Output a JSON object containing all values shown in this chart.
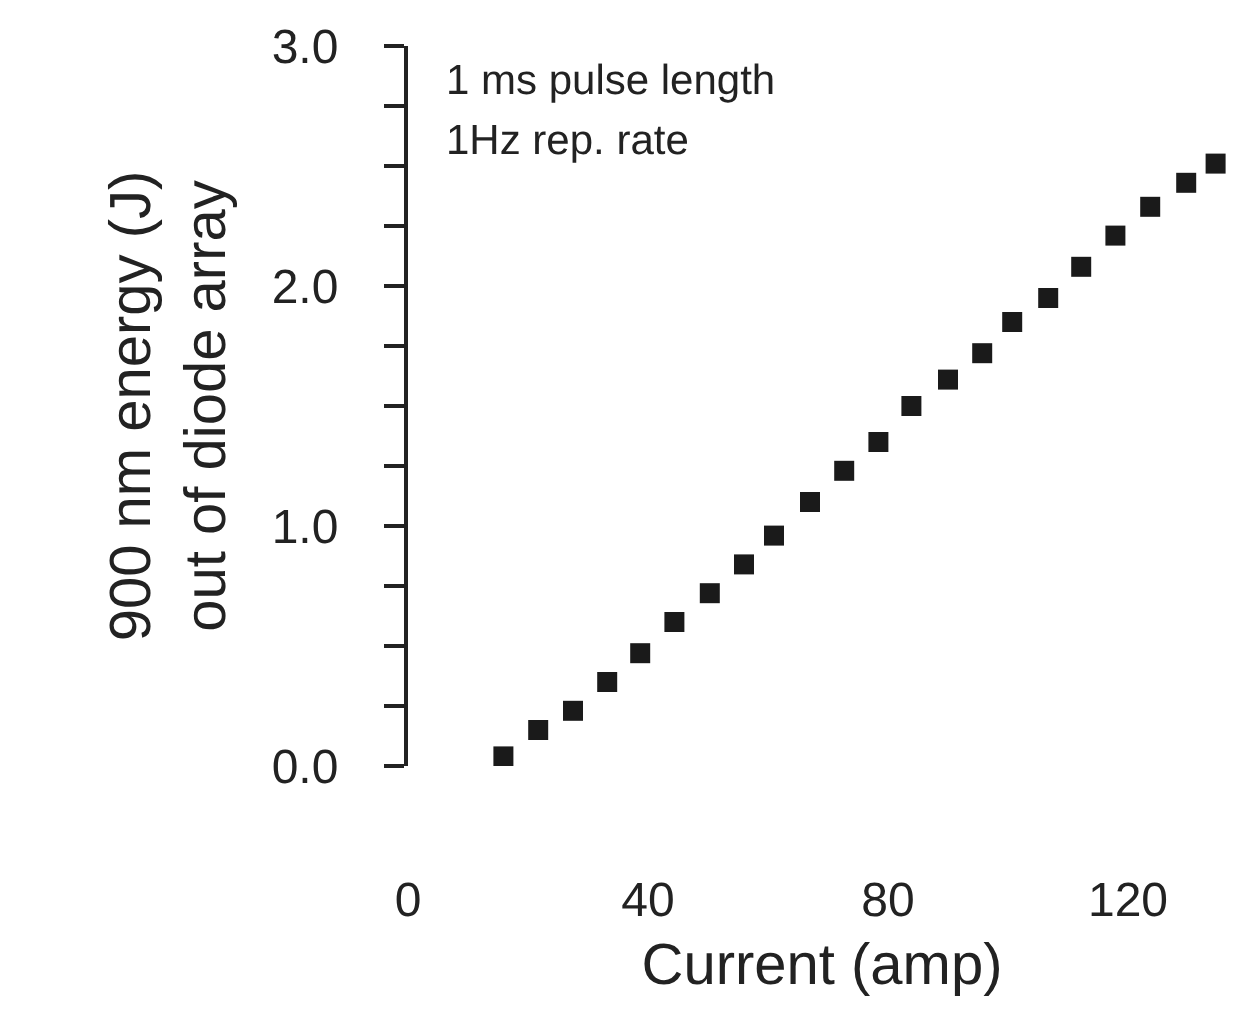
{
  "chart_data": {
    "type": "scatter",
    "xlabel": "Current (amp)",
    "ylabel": "900 nm energy (J)\nout of diode array",
    "annotations": [
      "1 ms pulse length",
      "1Hz rep. rate"
    ],
    "x": [
      15.9,
      21.7,
      27.5,
      33.2,
      38.7,
      44.4,
      50.3,
      56.0,
      61.0,
      67.0,
      72.7,
      78.4,
      83.9,
      90.0,
      95.7,
      100.7,
      106.7,
      112.2,
      117.9,
      123.7,
      129.7,
      134.6
    ],
    "values": [
      0.04,
      0.15,
      0.23,
      0.35,
      0.47,
      0.6,
      0.72,
      0.84,
      0.96,
      1.1,
      1.23,
      1.35,
      1.5,
      1.61,
      1.72,
      1.85,
      1.95,
      2.08,
      2.21,
      2.33,
      2.43,
      2.51
    ],
    "color": "#1a1a1a",
    "marker": "square",
    "grid": false,
    "xlim": [
      0,
      138
    ],
    "xticks": [
      0,
      40,
      80,
      120
    ],
    "ylim": [
      0,
      3
    ],
    "yticks": [
      {
        "value": 0,
        "label": "0.0"
      },
      {
        "value": 0.25,
        "label": null
      },
      {
        "value": 0.5,
        "label": null
      },
      {
        "value": 0.75,
        "label": null
      },
      {
        "value": 1,
        "label": "1.0"
      },
      {
        "value": 1.25,
        "label": null
      },
      {
        "value": 1.5,
        "label": null
      },
      {
        "value": 1.75,
        "label": null
      },
      {
        "value": 2,
        "label": "2.0"
      },
      {
        "value": 2.25,
        "label": null
      },
      {
        "value": 2.5,
        "label": null
      },
      {
        "value": 2.75,
        "label": null
      },
      {
        "value": 3,
        "label": "3.0"
      }
    ]
  }
}
